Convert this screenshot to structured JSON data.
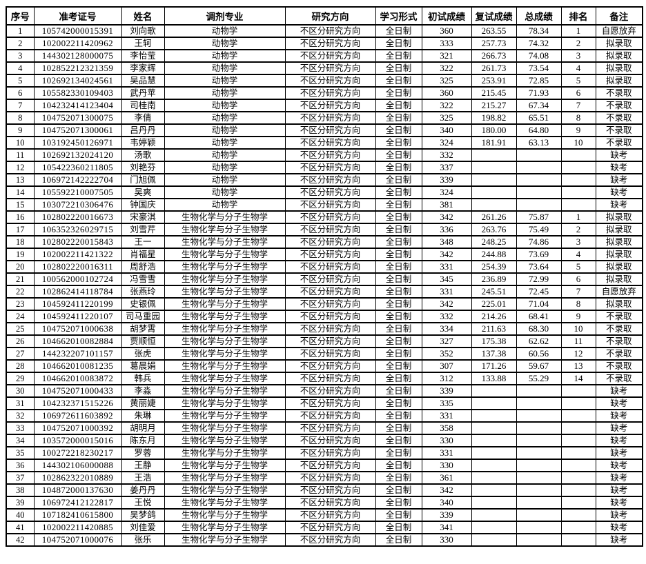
{
  "table": {
    "columns": [
      "序号",
      "准考证号",
      "姓名",
      "调剂专业",
      "研究方向",
      "学习形式",
      "初试成绩",
      "复试成绩",
      "总成绩",
      "排名",
      "备注"
    ],
    "rows": [
      [
        "1",
        "105742000015391",
        "刘向歌",
        "动物学",
        "不区分研究方向",
        "全日制",
        "360",
        "263.55",
        "78.34",
        "1",
        "自愿放弃"
      ],
      [
        "2",
        "102002211420962",
        "王轲",
        "动物学",
        "不区分研究方向",
        "全日制",
        "333",
        "257.73",
        "74.32",
        "2",
        "拟录取"
      ],
      [
        "3",
        "144302128000075",
        "李怡莹",
        "动物学",
        "不区分研究方向",
        "全日制",
        "321",
        "266.73",
        "74.08",
        "3",
        "拟录取"
      ],
      [
        "4",
        "102852212321359",
        "李家辉",
        "动物学",
        "不区分研究方向",
        "全日制",
        "322",
        "261.73",
        "73.54",
        "4",
        "拟录取"
      ],
      [
        "5",
        "102692134024561",
        "吴品慧",
        "动物学",
        "不区分研究方向",
        "全日制",
        "325",
        "253.91",
        "72.85",
        "5",
        "拟录取"
      ],
      [
        "6",
        "105582330109403",
        "武丹苹",
        "动物学",
        "不区分研究方向",
        "全日制",
        "360",
        "215.45",
        "71.93",
        "6",
        "不录取"
      ],
      [
        "7",
        "104232414123404",
        "司桂南",
        "动物学",
        "不区分研究方向",
        "全日制",
        "322",
        "215.27",
        "67.34",
        "7",
        "不录取"
      ],
      [
        "8",
        "104752071300075",
        "李倩",
        "动物学",
        "不区分研究方向",
        "全日制",
        "325",
        "198.82",
        "65.51",
        "8",
        "不录取"
      ],
      [
        "9",
        "104752071300061",
        "吕丹丹",
        "动物学",
        "不区分研究方向",
        "全日制",
        "340",
        "180.00",
        "64.80",
        "9",
        "不录取"
      ],
      [
        "10",
        "103192450126971",
        "韦婷颖",
        "动物学",
        "不区分研究方向",
        "全日制",
        "324",
        "181.91",
        "63.13",
        "10",
        "不录取"
      ],
      [
        "11",
        "102692132024120",
        "汤歌",
        "动物学",
        "不区分研究方向",
        "全日制",
        "332",
        "",
        "",
        "",
        "缺考"
      ],
      [
        "12",
        "105422360211805",
        "刘艳芬",
        "动物学",
        "不区分研究方向",
        "全日制",
        "337",
        "",
        "",
        "",
        "缺考"
      ],
      [
        "13",
        "106972142222704",
        "门旭佩",
        "动物学",
        "不区分研究方向",
        "全日制",
        "339",
        "",
        "",
        "",
        "缺考"
      ],
      [
        "14",
        "105592210007505",
        "吴爽",
        "动物学",
        "不区分研究方向",
        "全日制",
        "324",
        "",
        "",
        "",
        "缺考"
      ],
      [
        "15",
        "103072210306476",
        "钟国庆",
        "动物学",
        "不区分研究方向",
        "全日制",
        "381",
        "",
        "",
        "",
        "缺考"
      ],
      [
        "16",
        "102802220016673",
        "宋豪淇",
        "生物化学与分子生物学",
        "不区分研究方向",
        "全日制",
        "342",
        "261.26",
        "75.87",
        "1",
        "拟录取"
      ],
      [
        "17",
        "106352326029715",
        "刘雪芹",
        "生物化学与分子生物学",
        "不区分研究方向",
        "全日制",
        "336",
        "263.76",
        "75.49",
        "2",
        "拟录取"
      ],
      [
        "18",
        "102802220015843",
        "王一",
        "生物化学与分子生物学",
        "不区分研究方向",
        "全日制",
        "348",
        "248.25",
        "74.86",
        "3",
        "拟录取"
      ],
      [
        "19",
        "102002211421322",
        "肖福星",
        "生物化学与分子生物学",
        "不区分研究方向",
        "全日制",
        "342",
        "244.88",
        "73.69",
        "4",
        "拟录取"
      ],
      [
        "20",
        "102802220016311",
        "周舒浩",
        "生物化学与分子生物学",
        "不区分研究方向",
        "全日制",
        "331",
        "254.39",
        "73.64",
        "5",
        "拟录取"
      ],
      [
        "21",
        "100562000102724",
        "冯雪雪",
        "生物化学与分子生物学",
        "不区分研究方向",
        "全日制",
        "345",
        "236.89",
        "72.99",
        "6",
        "拟录取"
      ],
      [
        "22",
        "102862414118784",
        "张燕玲",
        "生物化学与分子生物学",
        "不区分研究方向",
        "全日制",
        "331",
        "245.51",
        "72.45",
        "7",
        "自愿放弃"
      ],
      [
        "23",
        "104592411220199",
        "史银佩",
        "生物化学与分子生物学",
        "不区分研究方向",
        "全日制",
        "342",
        "225.01",
        "71.04",
        "8",
        "拟录取"
      ],
      [
        "24",
        "104592411220107",
        "司马重园",
        "生物化学与分子生物学",
        "不区分研究方向",
        "全日制",
        "332",
        "214.26",
        "68.41",
        "9",
        "不录取"
      ],
      [
        "25",
        "104752071000638",
        "胡梦霄",
        "生物化学与分子生物学",
        "不区分研究方向",
        "全日制",
        "334",
        "211.63",
        "68.30",
        "10",
        "不录取"
      ],
      [
        "26",
        "104662010082884",
        "贾顺恒",
        "生物化学与分子生物学",
        "不区分研究方向",
        "全日制",
        "327",
        "175.38",
        "62.62",
        "11",
        "不录取"
      ],
      [
        "27",
        "144232207101157",
        "张虎",
        "生物化学与分子生物学",
        "不区分研究方向",
        "全日制",
        "352",
        "137.38",
        "60.56",
        "12",
        "不录取"
      ],
      [
        "28",
        "104662010081235",
        "葛晨娟",
        "生物化学与分子生物学",
        "不区分研究方向",
        "全日制",
        "307",
        "171.26",
        "59.67",
        "13",
        "不录取"
      ],
      [
        "29",
        "104662010083872",
        "韩兵",
        "生物化学与分子生物学",
        "不区分研究方向",
        "全日制",
        "312",
        "133.88",
        "55.29",
        "14",
        "不录取"
      ],
      [
        "30",
        "104752071000433",
        "李淼",
        "生物化学与分子生物学",
        "不区分研究方向",
        "全日制",
        "339",
        "",
        "",
        "",
        "缺考"
      ],
      [
        "31",
        "104232371515226",
        "黄丽婕",
        "生物化学与分子生物学",
        "不区分研究方向",
        "全日制",
        "335",
        "",
        "",
        "",
        "缺考"
      ],
      [
        "32",
        "106972611603892",
        "朱琳",
        "生物化学与分子生物学",
        "不区分研究方向",
        "全日制",
        "331",
        "",
        "",
        "",
        "缺考"
      ],
      [
        "33",
        "104752071000392",
        "胡明月",
        "生物化学与分子生物学",
        "不区分研究方向",
        "全日制",
        "358",
        "",
        "",
        "",
        "缺考"
      ],
      [
        "34",
        "103572000015016",
        "陈东月",
        "生物化学与分子生物学",
        "不区分研究方向",
        "全日制",
        "330",
        "",
        "",
        "",
        "缺考"
      ],
      [
        "35",
        "100272218230217",
        "罗蓉",
        "生物化学与分子生物学",
        "不区分研究方向",
        "全日制",
        "331",
        "",
        "",
        "",
        "缺考"
      ],
      [
        "36",
        "144302106000088",
        "王静",
        "生物化学与分子生物学",
        "不区分研究方向",
        "全日制",
        "330",
        "",
        "",
        "",
        "缺考"
      ],
      [
        "37",
        "102862322010889",
        "王浩",
        "生物化学与分子生物学",
        "不区分研究方向",
        "全日制",
        "361",
        "",
        "",
        "",
        "缺考"
      ],
      [
        "38",
        "104872000137630",
        "姜丹丹",
        "生物化学与分子生物学",
        "不区分研究方向",
        "全日制",
        "342",
        "",
        "",
        "",
        "缺考"
      ],
      [
        "39",
        "106972412122817",
        "王悦",
        "生物化学与分子生物学",
        "不区分研究方向",
        "全日制",
        "340",
        "",
        "",
        "",
        "缺考"
      ],
      [
        "40",
        "107182410615800",
        "吴梦鸽",
        "生物化学与分子生物学",
        "不区分研究方向",
        "全日制",
        "339",
        "",
        "",
        "",
        "缺考"
      ],
      [
        "41",
        "102002211420885",
        "刘佳爱",
        "生物化学与分子生物学",
        "不区分研究方向",
        "全日制",
        "341",
        "",
        "",
        "",
        "缺考"
      ],
      [
        "42",
        "104752071000076",
        "张乐",
        "生物化学与分子生物学",
        "不区分研究方向",
        "全日制",
        "330",
        "",
        "",
        "",
        "缺考"
      ]
    ]
  },
  "colors": {
    "border": "#000000",
    "text": "#000000",
    "background": "#ffffff"
  }
}
